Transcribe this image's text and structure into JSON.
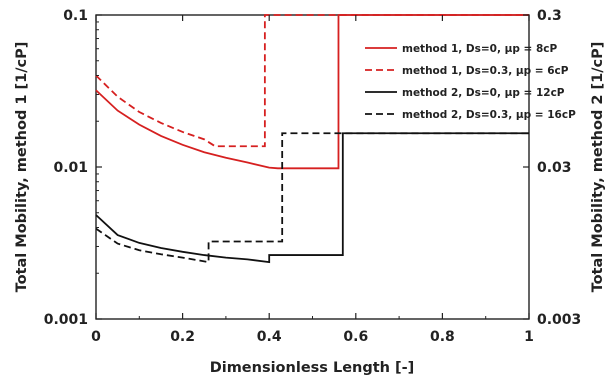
{
  "chart_data": {
    "type": "line",
    "title": "",
    "xlabel": "Dimensionless Length [-]",
    "ylabel_left": "Total Mobility, method 1 [1/cP]",
    "ylabel_right": "Total Mobility, method 2 [1/cP]",
    "x_range": [
      0,
      1
    ],
    "y_left_range": [
      0.001,
      0.1
    ],
    "y_left_scale": "log",
    "y_right_range": [
      0.003,
      0.3
    ],
    "y_right_scale": "log",
    "x_ticks": [
      "0",
      "0.2",
      "0.4",
      "0.6",
      "0.8",
      "1"
    ],
    "y_left_ticks": [
      "0.001",
      "0.01",
      "0.1"
    ],
    "y_right_ticks": [
      "0.003",
      "0.03",
      "0.3"
    ],
    "grid": false,
    "legend_position": "top-right",
    "series": [
      {
        "name": "method 1, Ds=0, μp = 8cP",
        "color": "#d62020",
        "dash": "solid",
        "axis": "left",
        "points": [
          [
            0,
            0.032
          ],
          [
            0.05,
            0.0235
          ],
          [
            0.1,
            0.019
          ],
          [
            0.15,
            0.016
          ],
          [
            0.2,
            0.014
          ],
          [
            0.25,
            0.0125
          ],
          [
            0.3,
            0.0115
          ],
          [
            0.35,
            0.0107
          ],
          [
            0.4,
            0.0099
          ],
          [
            0.42,
            0.0098
          ],
          [
            0.56,
            0.0098
          ],
          [
            0.56,
            0.1
          ],
          [
            1,
            0.1
          ]
        ]
      },
      {
        "name": "method 1, Ds=0.3, μp = 6cP",
        "color": "#d62020",
        "dash": "dashed",
        "axis": "left",
        "points": [
          [
            0,
            0.04
          ],
          [
            0.05,
            0.029
          ],
          [
            0.1,
            0.023
          ],
          [
            0.15,
            0.0195
          ],
          [
            0.2,
            0.017
          ],
          [
            0.25,
            0.0152
          ],
          [
            0.275,
            0.0137
          ],
          [
            0.39,
            0.0137
          ],
          [
            0.39,
            0.1
          ],
          [
            1,
            0.1
          ]
        ]
      },
      {
        "name": "method 2, Ds=0, μp = 12cP",
        "color": "#111111",
        "dash": "solid",
        "axis": "right",
        "points": [
          [
            0,
            0.0145
          ],
          [
            0.05,
            0.0107
          ],
          [
            0.1,
            0.0095
          ],
          [
            0.15,
            0.0088
          ],
          [
            0.2,
            0.0083
          ],
          [
            0.25,
            0.0079
          ],
          [
            0.3,
            0.0076
          ],
          [
            0.35,
            0.0074
          ],
          [
            0.4,
            0.0071
          ],
          [
            0.4,
            0.0079
          ],
          [
            0.57,
            0.0079
          ],
          [
            0.57,
            0.05
          ],
          [
            1,
            0.05
          ]
        ]
      },
      {
        "name": "method 2, Ds=0.3, μp = 16cP",
        "color": "#111111",
        "dash": "dashed",
        "axis": "right",
        "points": [
          [
            0,
            0.0118
          ],
          [
            0.05,
            0.0094
          ],
          [
            0.1,
            0.0085
          ],
          [
            0.15,
            0.008
          ],
          [
            0.2,
            0.0076
          ],
          [
            0.26,
            0.0071
          ],
          [
            0.26,
            0.0097
          ],
          [
            0.43,
            0.0097
          ],
          [
            0.43,
            0.05
          ],
          [
            1,
            0.05
          ]
        ]
      }
    ]
  }
}
